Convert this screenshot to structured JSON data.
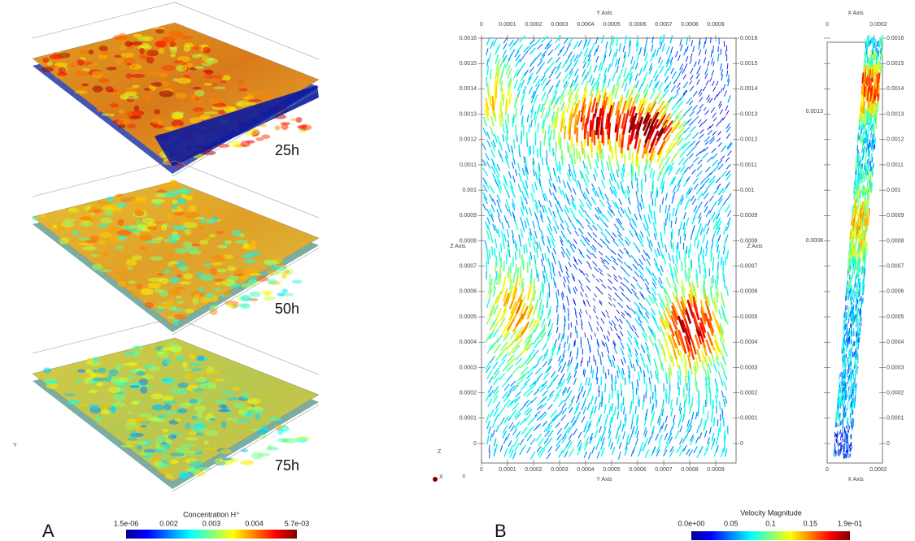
{
  "panel_a": {
    "label": "A",
    "time_labels": [
      "25h",
      "50h",
      "75h"
    ],
    "orientation": [
      "Y"
    ],
    "colorbar": {
      "title": "Concentration H⁺",
      "ticks": [
        "1.5e-06",
        "0.002",
        "0.003",
        "0.004",
        "5.7e-03"
      ]
    }
  },
  "panel_b": {
    "label": "B",
    "main_view": {
      "x_axis_title": "Y Axis",
      "y_axis_title": "Z Axis",
      "x_ticks": [
        "0",
        "0.0001",
        "0.0002",
        "0.0003",
        "0.0004",
        "0.0005",
        "0.0006",
        "0.0007",
        "0.0008",
        "0.0009"
      ],
      "y_ticks": [
        "0",
        "0.0001",
        "0.0002",
        "0.0003",
        "0.0004",
        "0.0005",
        "0.0006",
        "0.0007",
        "0.0008",
        "0.0009",
        "0.001",
        "0.0011",
        "0.0012",
        "0.0013",
        "0.0014",
        "0.0015",
        "0.0016"
      ]
    },
    "side_view": {
      "x_axis_title": "X Axis",
      "x_ticks": [
        "0",
        "0.0002"
      ],
      "left_ticks": [
        "0.0013",
        "0.0008"
      ],
      "right_ticks": [
        "0",
        "0.0001",
        "0.0002",
        "0.0003",
        "0.0004",
        "0.0005",
        "0.0006",
        "0.0007",
        "0.0008",
        "0.0009",
        "0.001",
        "0.0011",
        "0.0012",
        "0.0013",
        "0.0014",
        "0.0015",
        "0.0016"
      ]
    },
    "orientation": [
      "Z",
      "X",
      "Y"
    ],
    "colorbar": {
      "title": "Velocity Magnitude",
      "ticks": [
        "0.0e+00",
        "0.05",
        "0.1",
        "0.15",
        "1.9e-01"
      ]
    }
  }
}
